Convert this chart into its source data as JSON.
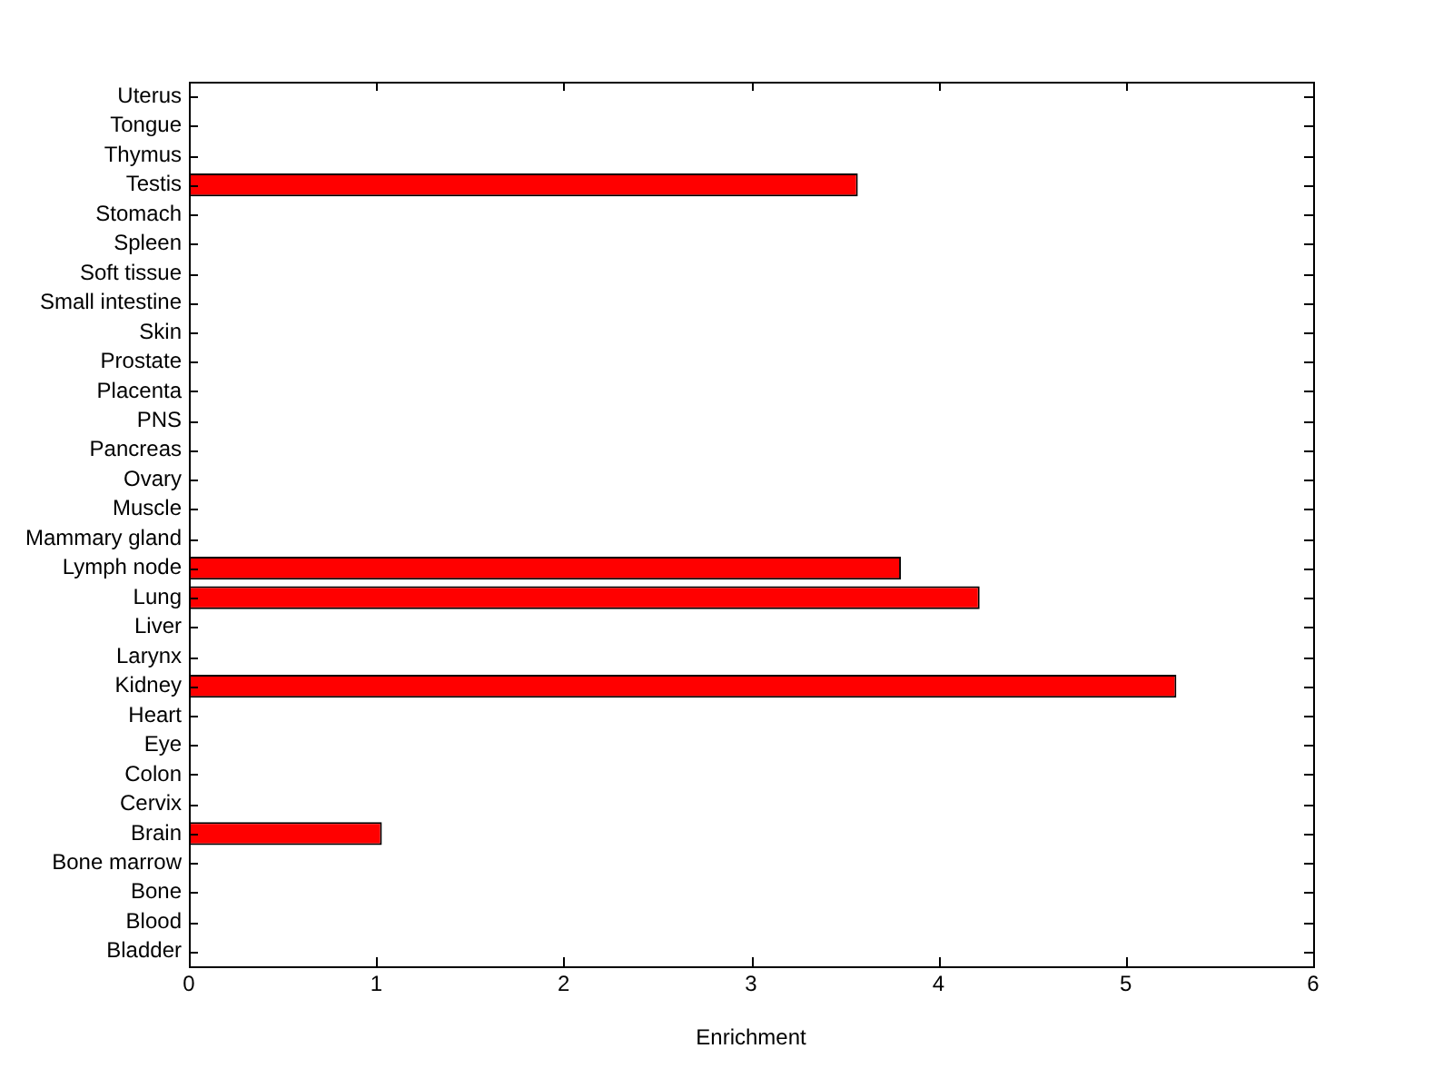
{
  "chart_data": {
    "type": "bar",
    "orientation": "horizontal",
    "xlabel": "Enrichment",
    "categories": [
      "Uterus",
      "Tongue",
      "Thymus",
      "Testis",
      "Stomach",
      "Spleen",
      "Soft tissue",
      "Small intestine",
      "Skin",
      "Prostate",
      "Placenta",
      "PNS",
      "Pancreas",
      "Ovary",
      "Muscle",
      "Mammary gland",
      "Lymph node",
      "Lung",
      "Liver",
      "Larynx",
      "Kidney",
      "Heart",
      "Eye",
      "Colon",
      "Cervix",
      "Brain",
      "Bone marrow",
      "Bone",
      "Blood",
      "Bladder"
    ],
    "values": [
      0,
      0,
      0,
      3.57,
      0,
      0,
      0,
      0,
      0,
      0,
      0,
      0,
      0,
      0,
      0,
      0,
      3.8,
      4.22,
      0,
      0,
      5.27,
      0,
      0,
      0,
      0,
      1.03,
      0,
      0,
      0,
      0
    ],
    "color": "#ff0000",
    "xlim": [
      0,
      6
    ],
    "xticks": [
      0,
      1,
      2,
      3,
      4,
      5,
      6
    ],
    "grid": false,
    "legend": false
  }
}
